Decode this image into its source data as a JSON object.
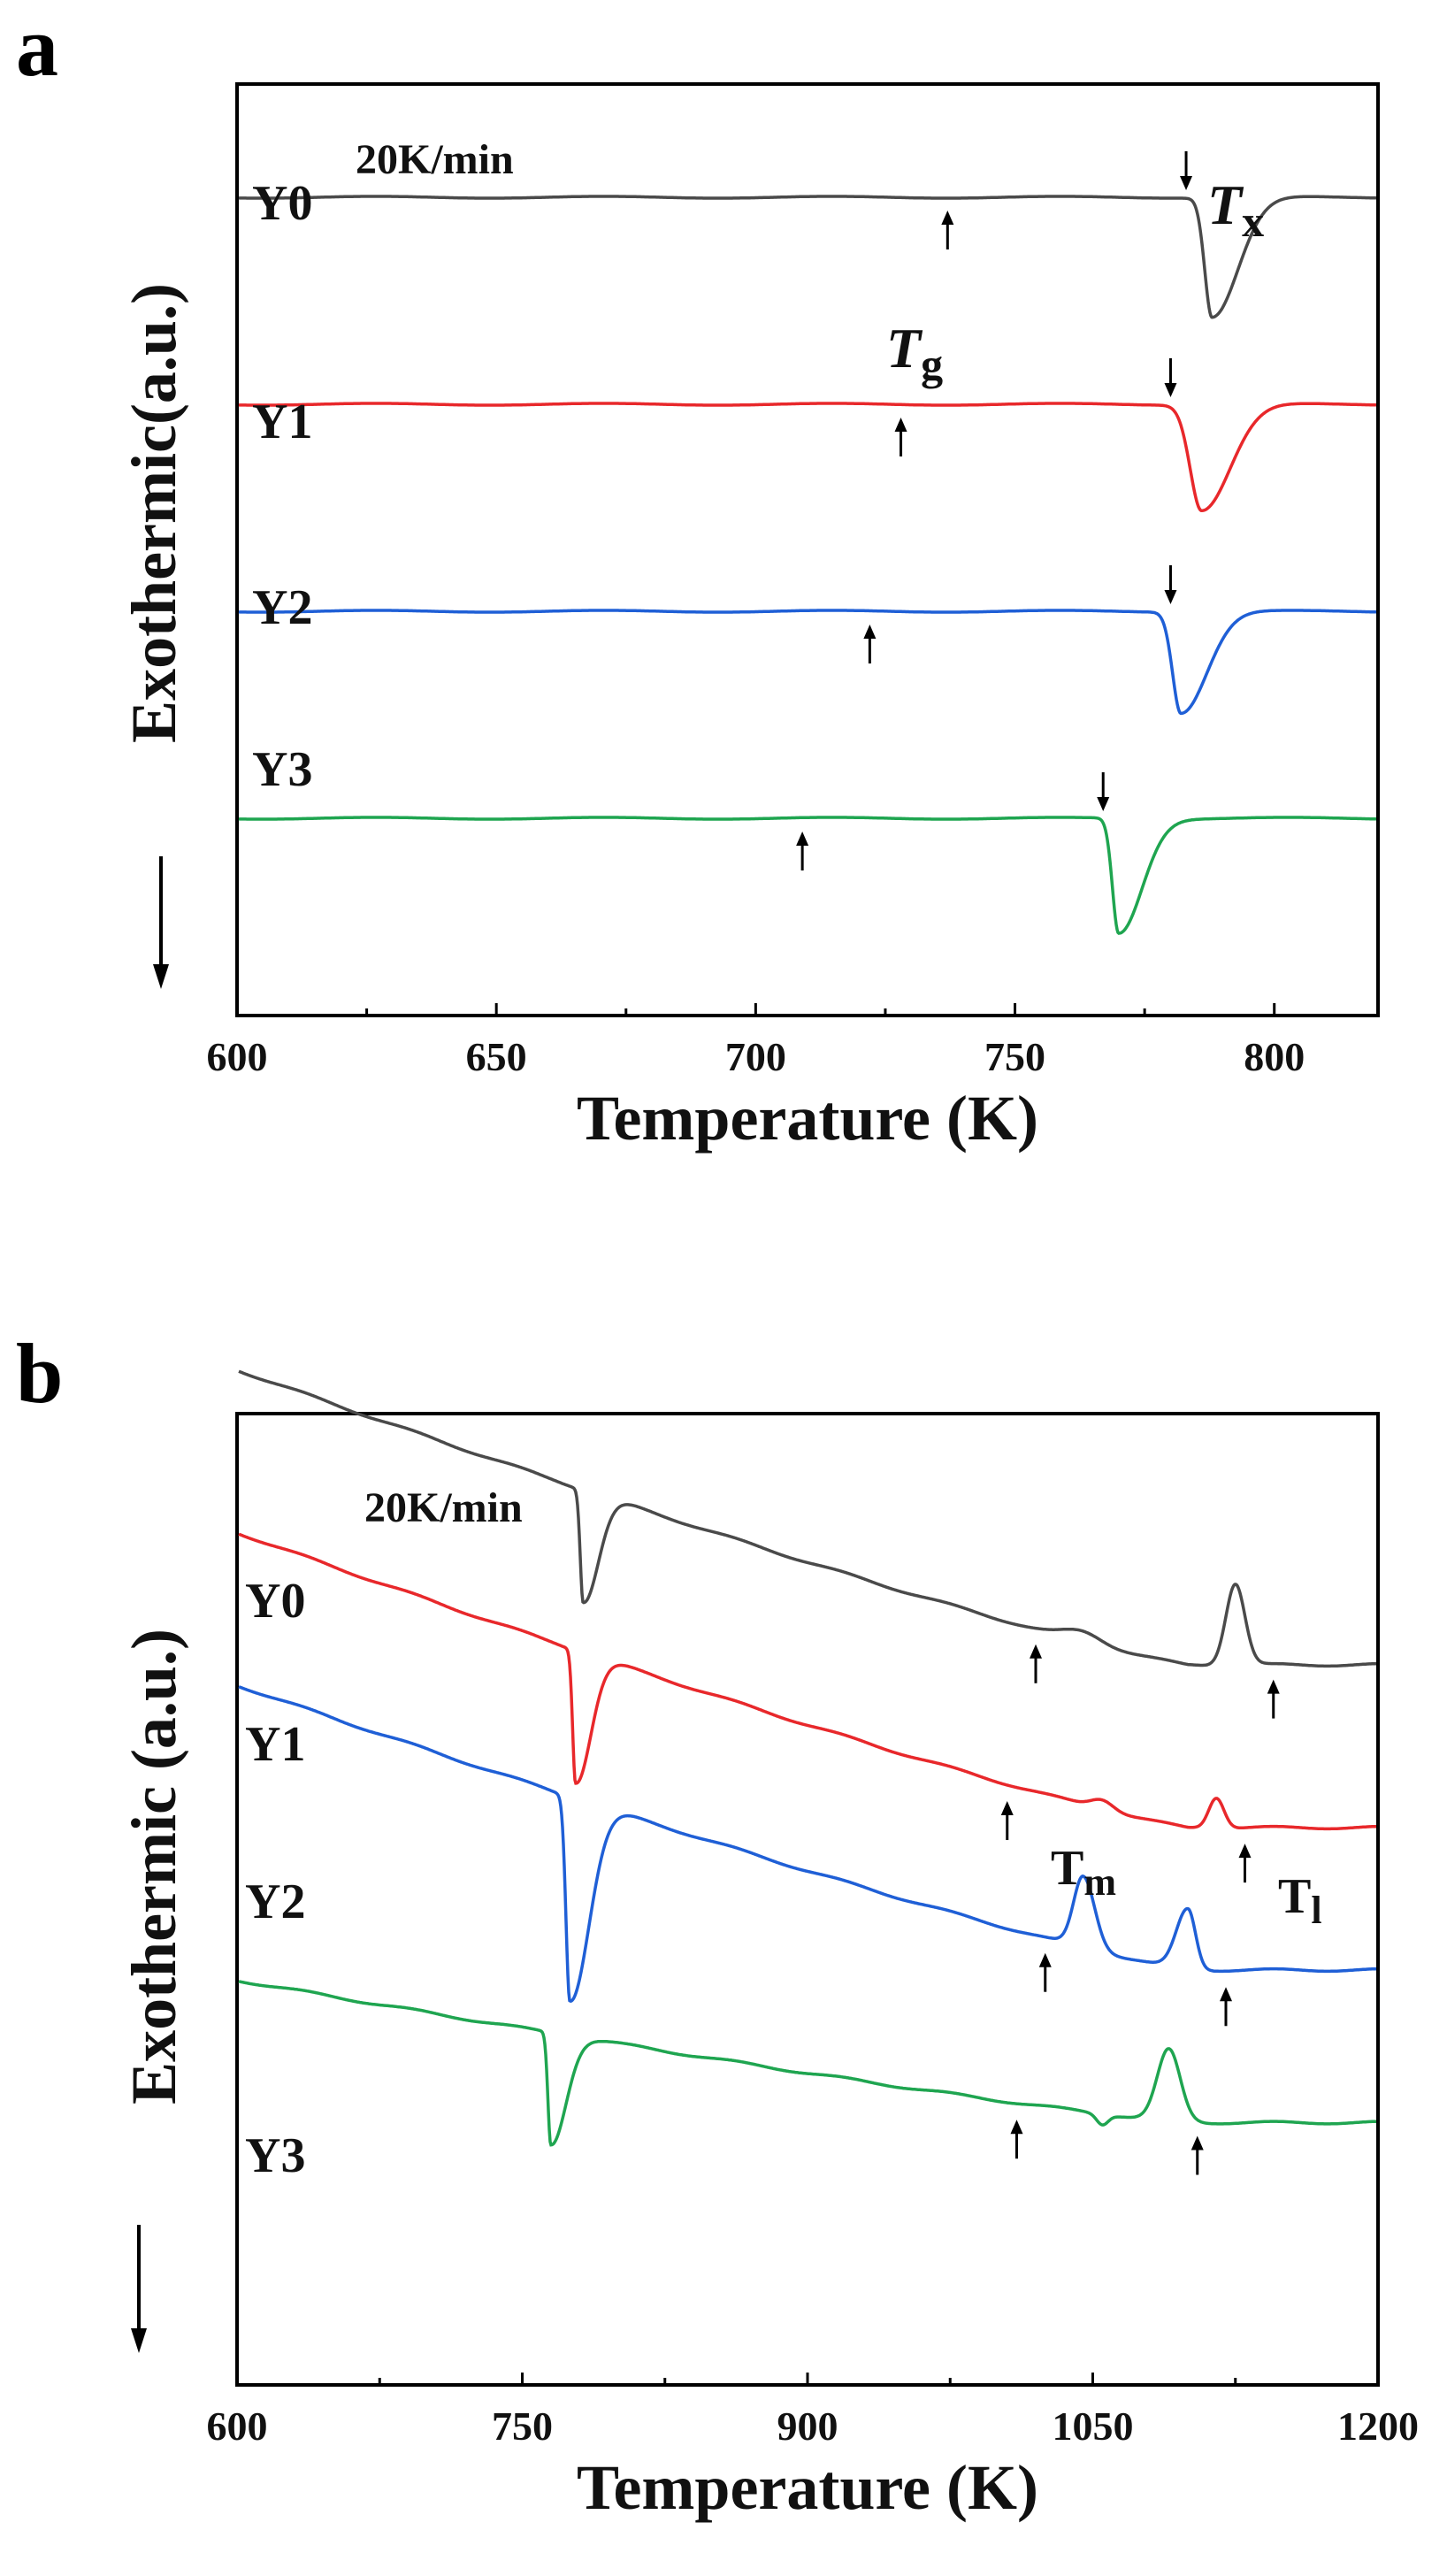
{
  "chart_data": [
    {
      "panel_label": "a",
      "type": "line",
      "rate_label": "20K/min",
      "xlabel": "Temperature (K)",
      "ylabel": "Exothermic(a.u.)",
      "xlim": [
        600,
        820
      ],
      "xticks": [
        600,
        650,
        700,
        750,
        800
      ],
      "grid": false,
      "marker_labels": {
        "tg": {
          "main": "T",
          "sub": "g"
        },
        "tx": {
          "main": "T",
          "sub": "x"
        }
      },
      "series": [
        {
          "name": "Y0",
          "color": "#4a4a4a",
          "offset": 2.7,
          "tg": 737,
          "tx": 783,
          "peaks": [
            {
              "x": 788,
              "depth": 0.52,
              "wl": 1.4,
              "wr": 5.0
            }
          ]
        },
        {
          "name": "Y1",
          "color": "#e8282b",
          "offset": 1.8,
          "tg": 728,
          "tx": 780,
          "peaks": [
            {
              "x": 786,
              "depth": 0.46,
              "wl": 2.2,
              "wr": 5.5
            }
          ]
        },
        {
          "name": "Y2",
          "color": "#1f5fd6",
          "offset": 0.9,
          "tg": 722,
          "tx": 780,
          "peaks": [
            {
              "x": 782,
              "depth": 0.44,
              "wl": 1.6,
              "wr": 5.0
            }
          ]
        },
        {
          "name": "Y3",
          "color": "#1fa550",
          "offset": 0.0,
          "tg": 709,
          "tx": 767,
          "peaks": [
            {
              "x": 770,
              "depth": 0.5,
              "wl": 1.2,
              "wr": 4.5
            }
          ]
        }
      ]
    },
    {
      "panel_label": "b",
      "type": "line",
      "rate_label": "20K/min",
      "xlabel": "Temperature (K)",
      "ylabel": "Exothermic (a.u.)",
      "xlim": [
        600,
        1200
      ],
      "xticks": [
        600,
        750,
        900,
        1050,
        1200
      ],
      "grid": false,
      "marker_labels": {
        "tm": {
          "main": "T",
          "sub": "m"
        },
        "tl": {
          "main": "T",
          "sub": "l"
        }
      },
      "series": [
        {
          "name": "Y0",
          "color": "#4a4a4a",
          "start": 4.55,
          "end": 3.1,
          "tm": 1020,
          "tl": 1145,
          "peaks": [
            {
              "x": 782,
              "depth": 0.55,
              "wl": 1.5,
              "wr": 8
            },
            {
              "x": 1125,
              "depth": -0.4,
              "wl": 5,
              "wr": 5
            },
            {
              "x": 1045,
              "depth": -0.05,
              "wl": 10,
              "wr": 10
            }
          ]
        },
        {
          "name": "Y1",
          "color": "#e8282b",
          "start": 3.75,
          "end": 2.3,
          "tm": 1005,
          "tl": 1130,
          "peaks": [
            {
              "x": 778,
              "depth": 0.65,
              "wl": 1.5,
              "wr": 8
            },
            {
              "x": 1115,
              "depth": -0.15,
              "wl": 4,
              "wr": 4
            },
            {
              "x": 1055,
              "depth": -0.05,
              "wl": 6,
              "wr": 6
            }
          ]
        },
        {
          "name": "Y2",
          "color": "#1f5fd6",
          "start": 3.0,
          "end": 1.6,
          "tm": 1025,
          "tl": 1120,
          "peaks": [
            {
              "x": 775,
              "depth": 1.0,
              "wl": 2,
              "wr": 10
            },
            {
              "x": 1045,
              "depth": -0.35,
              "wl": 5,
              "wr": 6
            },
            {
              "x": 1100,
              "depth": -0.3,
              "wl": 6,
              "wr": 4
            }
          ]
        },
        {
          "name": "Y3",
          "color": "#1fa550",
          "start": 1.55,
          "end": 0.85,
          "tm": 1010,
          "tl": 1105,
          "peaks": [
            {
              "x": 765,
              "depth": 0.55,
              "wl": 1.5,
              "wr": 8
            },
            {
              "x": 1090,
              "depth": -0.35,
              "wl": 6,
              "wr": 6
            },
            {
              "x": 1055,
              "depth": 0.05,
              "wl": 3,
              "wr": 3
            }
          ]
        }
      ]
    }
  ]
}
